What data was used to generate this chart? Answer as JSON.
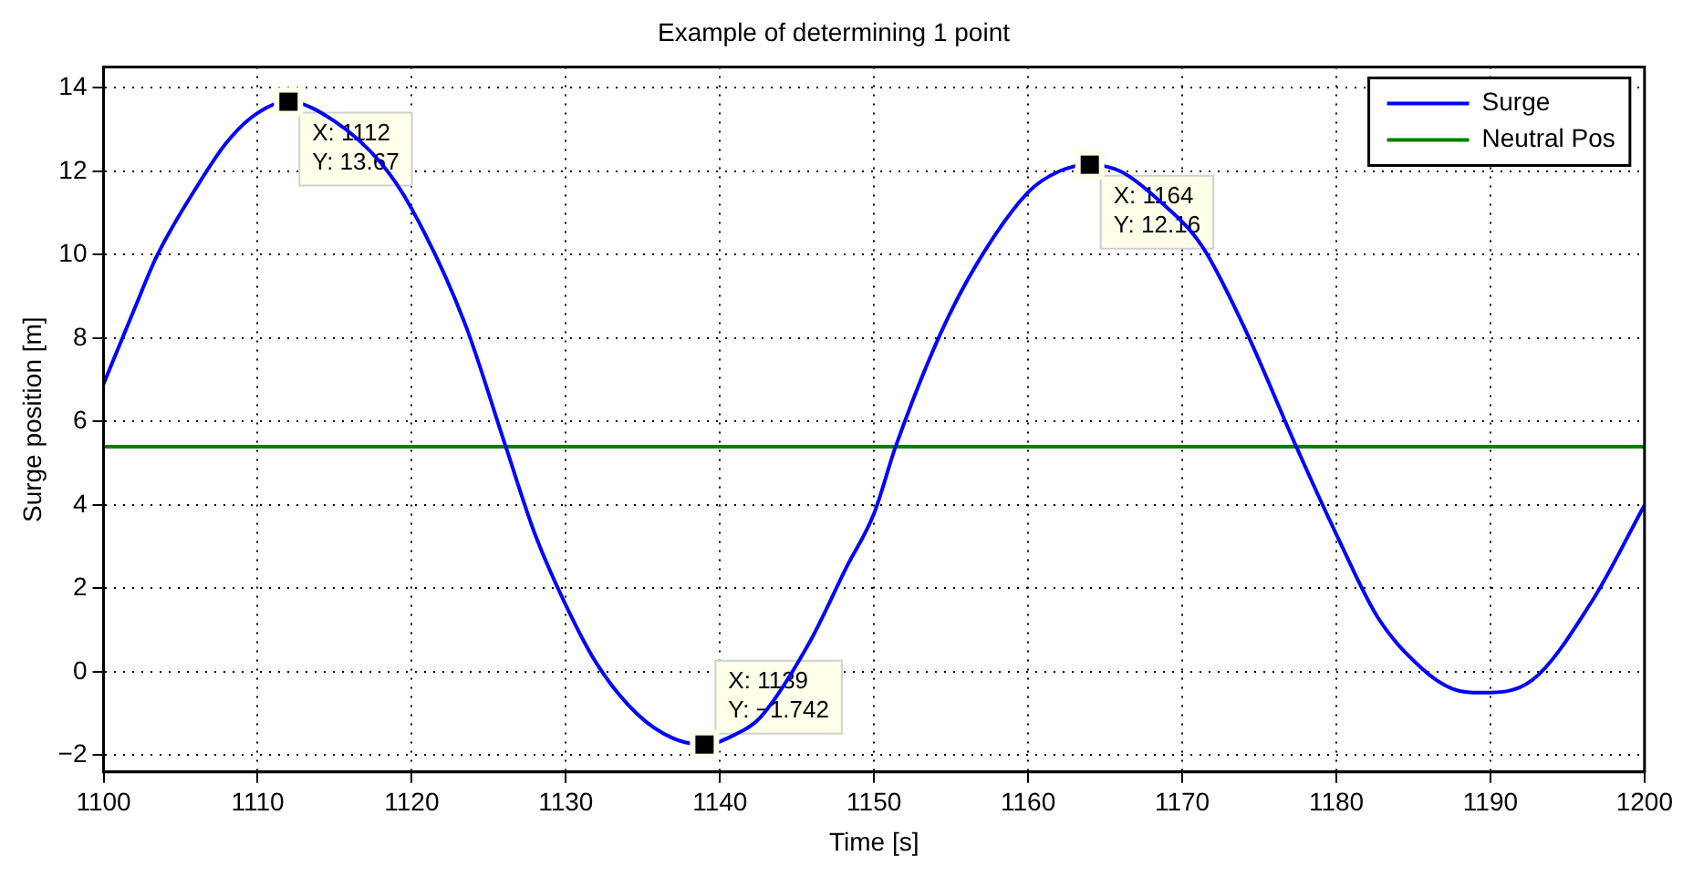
{
  "chart_data": {
    "type": "line",
    "title": "Example of determining 1 point",
    "xlabel": "Time [s]",
    "ylabel": "Surge position [m]",
    "xlim": [
      1100,
      1200
    ],
    "xticks": [
      1100,
      1110,
      1120,
      1130,
      1140,
      1150,
      1160,
      1170,
      1180,
      1190,
      1200
    ],
    "ylim": [
      -2.4,
      14.5
    ],
    "yticks": [
      -2,
      0,
      2,
      4,
      6,
      8,
      10,
      12,
      14
    ],
    "grid": true,
    "legend": "top right",
    "marker": "none",
    "line_style": "solid",
    "series": [
      {
        "name": "Surge",
        "color": "#0000ff",
        "x": [
          1100,
          1102,
          1103.5,
          1106,
          1108,
          1110,
          1112,
          1115,
          1118,
          1120,
          1123.4,
          1126.1,
          1128,
          1130,
          1132,
          1134.6,
          1137,
          1139,
          1141,
          1142.6,
          1145.8,
          1148.2,
          1150,
          1151.4,
          1154.3,
          1156.7,
          1160,
          1162,
          1164,
          1166,
          1168.5,
          1171.3,
          1174.1,
          1177.4,
          1180,
          1182.7,
          1185.5,
          1187.5,
          1189.5,
          1192.7,
          1196.6,
          1200
        ],
        "values": [
          6.9,
          8.7,
          10.0,
          11.6,
          12.7,
          13.4,
          13.67,
          13.2,
          12.2,
          11.1,
          8.4,
          5.4,
          3.3,
          1.6,
          0.2,
          -1.0,
          -1.6,
          -1.742,
          -1.5,
          -1.1,
          0.7,
          2.5,
          3.8,
          5.4,
          8.1,
          9.8,
          11.5,
          12.0,
          12.16,
          12.0,
          11.3,
          10.2,
          8.2,
          5.4,
          3.3,
          1.3,
          0.1,
          -0.4,
          -0.5,
          -0.2,
          1.7,
          4.0
        ]
      },
      {
        "name": "Neutral Pos",
        "color": "#008000",
        "x": [
          1100,
          1200
        ],
        "values": [
          5.4,
          5.4
        ]
      }
    ],
    "annotations": [
      {
        "text": "X: 1112\nY: 13.67",
        "x": 1112,
        "y": 13.67
      },
      {
        "text": "X: 1139\nY: −1.742",
        "x": 1139,
        "y": -1.742
      },
      {
        "text": "X: 1164\nY: 12.16",
        "x": 1164,
        "y": 12.16
      }
    ]
  }
}
